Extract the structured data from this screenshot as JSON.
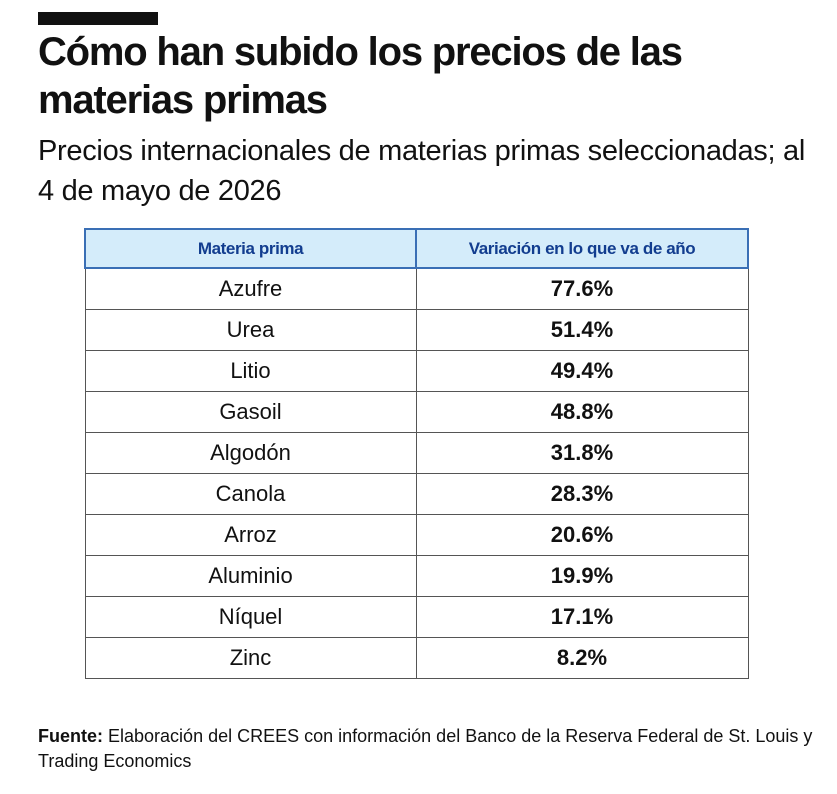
{
  "header": {
    "title": "Cómo han subido los precios de las materias primas",
    "subtitle": "Precios internacionales de materias primas seleccionadas; al 4 de mayo de 2026"
  },
  "footer": {
    "source_label": "Fuente:",
    "source_text": "Elaboración del CREES con información del Banco de la Reserva Federal de St. Louis y Trading Economics"
  },
  "colors": {
    "header_bg": "#d4ecfa",
    "header_text": "#123d8f",
    "header_border": "#3a6fb5"
  },
  "chart_data": {
    "type": "table",
    "columns": [
      "Materia prima",
      "Variación en lo que va de año"
    ],
    "rows": [
      {
        "name": "Azufre",
        "value": "77.6%"
      },
      {
        "name": "Urea",
        "value": "51.4%"
      },
      {
        "name": "Litio",
        "value": "49.4%"
      },
      {
        "name": "Gasoil",
        "value": "48.8%"
      },
      {
        "name": "Algodón",
        "value": "31.8%"
      },
      {
        "name": "Canola",
        "value": "28.3%"
      },
      {
        "name": "Arroz",
        "value": "20.6%"
      },
      {
        "name": "Aluminio",
        "value": "19.9%"
      },
      {
        "name": "Níquel",
        "value": "17.1%"
      },
      {
        "name": "Zinc",
        "value": "8.2%"
      }
    ]
  }
}
